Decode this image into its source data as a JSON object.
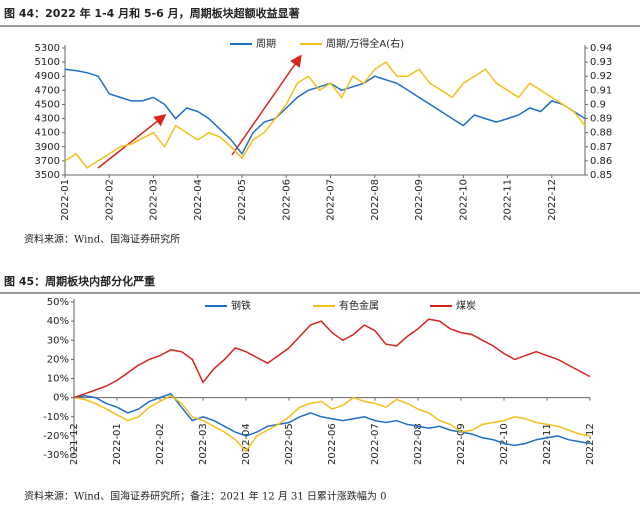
{
  "chart_data": [
    {
      "type": "line",
      "title": "图 44：2022 年 1-4 月和 5-6 月，周期板块超额收益显著",
      "source": "资料来源：Wind、国海证券研究所",
      "categories": [
        "2022-01",
        null,
        null,
        null,
        "2022-02",
        null,
        null,
        null,
        "2022-03",
        null,
        null,
        null,
        "2022-04",
        null,
        null,
        null,
        "2022-05",
        null,
        null,
        null,
        "2022-06",
        null,
        null,
        null,
        "2022-07",
        null,
        null,
        null,
        "2022-08",
        null,
        null,
        null,
        "2022-09",
        null,
        null,
        null,
        "2022-10",
        null,
        null,
        null,
        "2022-11",
        null,
        null,
        null,
        "2022-12",
        null,
        null,
        null
      ],
      "series": [
        {
          "name": "周期",
          "color": "#1f6fc5",
          "values": [
            5000,
            4980,
            4950,
            4900,
            4650,
            4600,
            4550,
            4550,
            4600,
            4500,
            4300,
            4450,
            4400,
            4300,
            4150,
            4000,
            3800,
            4100,
            4250,
            4300,
            4450,
            4600,
            4700,
            4750,
            4800,
            4700,
            4750,
            4800,
            4900,
            4850,
            4800,
            4700,
            4600,
            4500,
            4400,
            4300,
            4200,
            4350,
            4300,
            4250,
            4300,
            4350,
            4450,
            4400,
            4550,
            4500,
            4400,
            4300
          ]
        },
        {
          "name": "周期/万得全A(右)",
          "color": "#f2c01a",
          "axis": "y2",
          "values": [
            0.86,
            0.865,
            0.855,
            0.86,
            0.865,
            0.87,
            0.872,
            0.876,
            0.88,
            0.87,
            0.885,
            0.88,
            0.875,
            0.88,
            0.877,
            0.87,
            0.862,
            0.875,
            0.88,
            0.89,
            0.9,
            0.915,
            0.92,
            0.91,
            0.915,
            0.905,
            0.92,
            0.915,
            0.925,
            0.93,
            0.92,
            0.92,
            0.925,
            0.915,
            0.91,
            0.905,
            0.915,
            0.92,
            0.925,
            0.915,
            0.91,
            0.905,
            0.915,
            0.91,
            0.905,
            0.9,
            0.895,
            0.885
          ]
        }
      ],
      "ylim": [
        3500,
        5300
      ],
      "yticks": [
        3500,
        3700,
        3900,
        4100,
        4300,
        4500,
        4700,
        4900,
        5100,
        5300
      ],
      "y2lim": [
        0.85,
        0.94
      ],
      "y2ticks": [
        0.85,
        0.86,
        0.87,
        0.88,
        0.89,
        0.9,
        0.91,
        0.92,
        0.93,
        0.94
      ]
    },
    {
      "type": "line",
      "title": "图 45：周期板块内部分化严重",
      "source": "资料来源：Wind、国海证券研究所；备注：2021 年 12 月 31 日累计涨跌幅为 0",
      "categories": [
        "2021-12",
        null,
        null,
        null,
        "2022-01",
        null,
        null,
        null,
        "2022-02",
        null,
        null,
        null,
        "2022-03",
        null,
        null,
        null,
        "2022-04",
        null,
        null,
        null,
        "2022-05",
        null,
        null,
        null,
        "2022-06",
        null,
        null,
        null,
        "2022-07",
        null,
        null,
        null,
        "2022-08",
        null,
        null,
        null,
        "2022-09",
        null,
        null,
        null,
        "2022-10",
        null,
        null,
        null,
        "2022-11",
        null,
        null,
        null,
        "2022-12"
      ],
      "series": [
        {
          "name": "钢铁",
          "color": "#1f6fc5",
          "values": [
            0,
            1,
            0,
            -3,
            -5,
            -8,
            -6,
            -2,
            0,
            2,
            -5,
            -12,
            -10,
            -12,
            -15,
            -18,
            -20,
            -18,
            -15,
            -14,
            -13,
            -10,
            -8,
            -10,
            -11,
            -12,
            -11,
            -10,
            -12,
            -13,
            -12,
            -14,
            -15,
            -16,
            -15,
            -17,
            -18,
            -19,
            -21,
            -22,
            -24,
            -25,
            -24,
            -22,
            -21,
            -20,
            -22,
            -23,
            -24
          ]
        },
        {
          "name": "有色金属",
          "color": "#f2c01a",
          "values": [
            0,
            -1,
            -3,
            -6,
            -9,
            -12,
            -10,
            -5,
            -2,
            1,
            -3,
            -10,
            -12,
            -15,
            -18,
            -22,
            -28,
            -20,
            -17,
            -14,
            -10,
            -5,
            -3,
            -2,
            -6,
            -4,
            0,
            -2,
            -3,
            -5,
            -1,
            -3,
            -6,
            -8,
            -12,
            -14,
            -18,
            -17,
            -14,
            -13,
            -12,
            -10,
            -11,
            -13,
            -14,
            -15,
            -17,
            -19,
            -20
          ]
        },
        {
          "name": "煤炭",
          "color": "#d9241c",
          "values": [
            0,
            2,
            4,
            6,
            9,
            13,
            17,
            20,
            22,
            25,
            24,
            20,
            8,
            15,
            20,
            26,
            24,
            21,
            18,
            22,
            26,
            32,
            38,
            40,
            34,
            30,
            33,
            38,
            35,
            28,
            27,
            32,
            36,
            41,
            40,
            36,
            34,
            33,
            30,
            27,
            23,
            20,
            22,
            24,
            22,
            20,
            17,
            14,
            11
          ]
        }
      ],
      "ylim": [
        -30,
        50
      ],
      "yticks": [
        {
          "value": -30,
          "label": "-30%"
        },
        {
          "value": -20,
          "label": "-20%"
        },
        {
          "value": -10,
          "label": "-10%"
        },
        {
          "value": 0,
          "label": "0%"
        },
        {
          "value": 10,
          "label": "10%"
        },
        {
          "value": 20,
          "label": "20%"
        },
        {
          "value": 30,
          "label": "30%"
        },
        {
          "value": 40,
          "label": "40%"
        },
        {
          "value": 50,
          "label": "50%"
        }
      ]
    }
  ]
}
